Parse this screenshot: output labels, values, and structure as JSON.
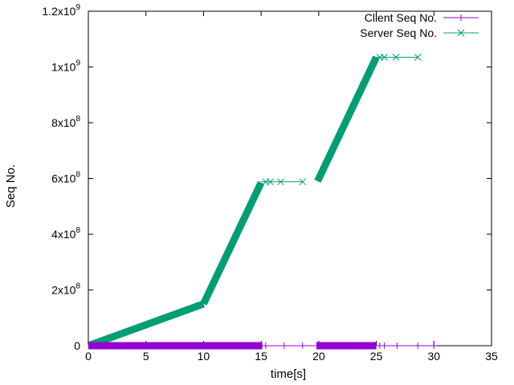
{
  "chart_data": {
    "type": "scatter",
    "title": "",
    "xlabel": "time[s]",
    "ylabel": "Seq No.",
    "xlim": [
      0,
      35
    ],
    "ylim": [
      0,
      1200000000
    ],
    "x_ticks": [
      {
        "value": 0,
        "label": "0"
      },
      {
        "value": 5,
        "label": "5"
      },
      {
        "value": 10,
        "label": "10"
      },
      {
        "value": 15,
        "label": "15"
      },
      {
        "value": 20,
        "label": "20"
      },
      {
        "value": 25,
        "label": "25"
      },
      {
        "value": 30,
        "label": "30"
      },
      {
        "value": 35,
        "label": "35"
      }
    ],
    "y_ticks": [
      {
        "value": 0,
        "mant": "0",
        "exp": ""
      },
      {
        "value": 200000000,
        "mant": "2x10",
        "exp": "8"
      },
      {
        "value": 400000000,
        "mant": "4x10",
        "exp": "8"
      },
      {
        "value": 600000000,
        "mant": "6x10",
        "exp": "8"
      },
      {
        "value": 800000000,
        "mant": "8x10",
        "exp": "8"
      },
      {
        "value": 1000000000,
        "mant": "1x10",
        "exp": "9"
      },
      {
        "value": 1200000000,
        "mant": "1.2x10",
        "exp": "9"
      }
    ],
    "grid": false,
    "legend_position": "top-right",
    "series": [
      {
        "name": "Client Seq No.",
        "color": "#9400d3",
        "marker": "plus",
        "dense_ranges": [
          {
            "x": [
              0,
              15.1
            ],
            "y": [
              0,
              0
            ]
          },
          {
            "x": [
              19.8,
              25.0
            ],
            "y": [
              0,
              0
            ]
          }
        ],
        "points": [
          {
            "x": 15.4,
            "y": 0
          },
          {
            "x": 17.0,
            "y": 0
          },
          {
            "x": 18.6,
            "y": 0
          },
          {
            "x": 25.3,
            "y": 0
          },
          {
            "x": 25.7,
            "y": 0
          },
          {
            "x": 26.8,
            "y": 0
          },
          {
            "x": 28.6,
            "y": 0
          },
          {
            "x": 30.0,
            "y": 0
          }
        ]
      },
      {
        "name": "Server Seq No.",
        "color": "#009e73",
        "marker": "x",
        "dense_ranges": [
          {
            "x": [
              0,
              10
            ],
            "y": [
              0,
              150000000
            ]
          },
          {
            "x": [
              10,
              15
            ],
            "y": [
              150000000,
              585000000
            ]
          },
          {
            "x": [
              19.9,
              25.0
            ],
            "y": [
              590000000,
              1035000000
            ]
          }
        ],
        "points": [
          {
            "x": 15.4,
            "y": 588000000
          },
          {
            "x": 15.8,
            "y": 588000000
          },
          {
            "x": 16.7,
            "y": 588000000
          },
          {
            "x": 18.6,
            "y": 588000000
          },
          {
            "x": 25.3,
            "y": 1035000000
          },
          {
            "x": 25.7,
            "y": 1035000000
          },
          {
            "x": 26.7,
            "y": 1035000000
          },
          {
            "x": 28.6,
            "y": 1035000000
          }
        ]
      }
    ]
  }
}
